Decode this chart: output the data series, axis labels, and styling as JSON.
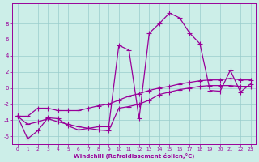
{
  "bg_color": "#cceee8",
  "line_color": "#990099",
  "xlabel": "Windchill (Refroidissement éolien,°C)",
  "hours": [
    0,
    1,
    2,
    3,
    4,
    5,
    6,
    7,
    8,
    9,
    10,
    11,
    12,
    13,
    14,
    15,
    16,
    17,
    18,
    19,
    20,
    21,
    22,
    23
  ],
  "windchill": [
    -3.5,
    -6.3,
    -5.3,
    -3.7,
    -3.8,
    -4.7,
    -5.2,
    -5.0,
    -4.8,
    -4.8,
    5.3,
    4.7,
    -3.8,
    6.8,
    8.0,
    9.3,
    8.7,
    6.8,
    5.5,
    -0.3,
    -0.4,
    2.2,
    -0.5,
    0.5
  ],
  "temperature": [
    -3.5,
    -3.5,
    -2.5,
    -2.5,
    -2.8,
    -2.8,
    -2.8,
    -2.5,
    -2.2,
    -2.0,
    -1.5,
    -1.0,
    -0.7,
    -0.3,
    0.0,
    0.2,
    0.5,
    0.7,
    0.9,
    1.0,
    1.0,
    1.2,
    1.0,
    1.0
  ],
  "apparent": [
    -3.5,
    -4.5,
    -4.2,
    -3.8,
    -4.2,
    -4.5,
    -4.8,
    -5.0,
    -5.2,
    -5.3,
    -2.5,
    -2.3,
    -2.0,
    -1.5,
    -0.8,
    -0.5,
    -0.2,
    0.0,
    0.2,
    0.3,
    0.3,
    0.3,
    0.2,
    0.2
  ],
  "yticks": [
    -6,
    -4,
    -2,
    0,
    2,
    4,
    6,
    8
  ],
  "ylim": [
    -7.0,
    10.5
  ],
  "xlim": [
    -0.5,
    23.5
  ]
}
